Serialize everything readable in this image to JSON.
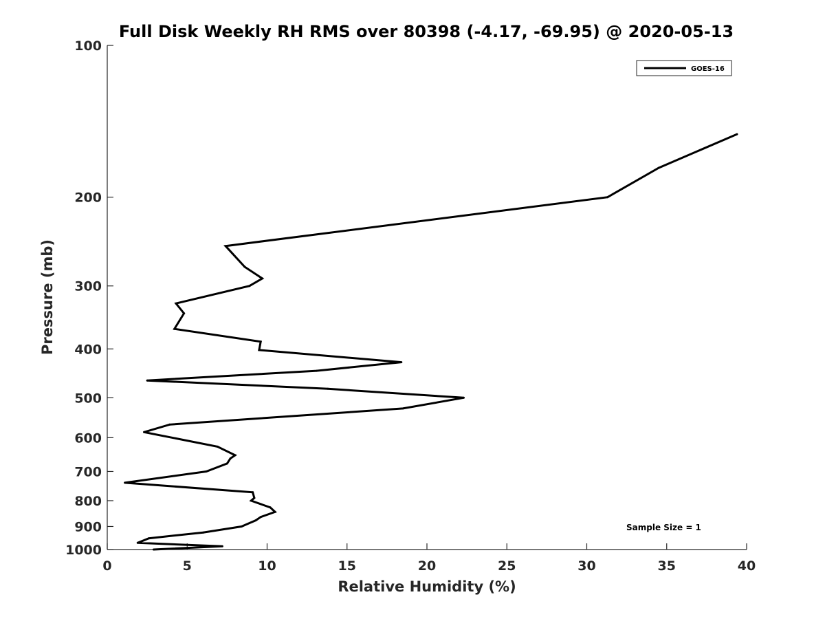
{
  "chart_data": {
    "type": "line",
    "title": "Full Disk Weekly RH RMS over 80398 (-4.17, -69.95) @ 2020-05-13",
    "xlabel": "Relative Humidity (%)",
    "ylabel": "Pressure (mb)",
    "xlim": [
      0,
      40
    ],
    "ylim": [
      100,
      1000
    ],
    "y_scale": "log",
    "y_reversed": true,
    "xticks": [
      0,
      5,
      10,
      15,
      20,
      25,
      30,
      35,
      40
    ],
    "yticks": [
      100,
      200,
      300,
      400,
      500,
      600,
      700,
      800,
      900,
      1000
    ],
    "grid": false,
    "legend_position": "top-right",
    "annotation": "Sample Size = 1",
    "series": [
      {
        "name": "GOES-16",
        "color": "#000000",
        "points": [
          {
            "x": 39.4,
            "y": 150
          },
          {
            "x": 34.5,
            "y": 175
          },
          {
            "x": 31.3,
            "y": 200
          },
          {
            "x": 7.4,
            "y": 250
          },
          {
            "x": 8.6,
            "y": 275
          },
          {
            "x": 9.7,
            "y": 290
          },
          {
            "x": 8.9,
            "y": 300
          },
          {
            "x": 4.3,
            "y": 325
          },
          {
            "x": 4.8,
            "y": 340
          },
          {
            "x": 4.2,
            "y": 365
          },
          {
            "x": 9.6,
            "y": 387
          },
          {
            "x": 9.5,
            "y": 402
          },
          {
            "x": 18.4,
            "y": 425
          },
          {
            "x": 13.1,
            "y": 442
          },
          {
            "x": 2.5,
            "y": 462
          },
          {
            "x": 13.8,
            "y": 480
          },
          {
            "x": 22.3,
            "y": 500
          },
          {
            "x": 18.5,
            "y": 525
          },
          {
            "x": 3.9,
            "y": 565
          },
          {
            "x": 2.3,
            "y": 585
          },
          {
            "x": 6.9,
            "y": 625
          },
          {
            "x": 8.0,
            "y": 650
          },
          {
            "x": 7.7,
            "y": 660
          },
          {
            "x": 7.5,
            "y": 675
          },
          {
            "x": 6.2,
            "y": 700
          },
          {
            "x": 1.1,
            "y": 737
          },
          {
            "x": 9.1,
            "y": 770
          },
          {
            "x": 9.2,
            "y": 790
          },
          {
            "x": 9.0,
            "y": 800
          },
          {
            "x": 10.2,
            "y": 825
          },
          {
            "x": 10.5,
            "y": 842
          },
          {
            "x": 9.6,
            "y": 862
          },
          {
            "x": 9.3,
            "y": 875
          },
          {
            "x": 8.4,
            "y": 900
          },
          {
            "x": 6.0,
            "y": 925
          },
          {
            "x": 2.6,
            "y": 950
          },
          {
            "x": 1.9,
            "y": 970
          },
          {
            "x": 7.2,
            "y": 985
          },
          {
            "x": 2.9,
            "y": 1000
          }
        ]
      }
    ]
  }
}
